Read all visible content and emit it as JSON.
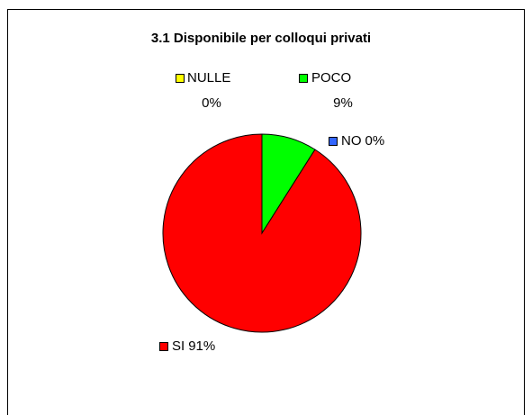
{
  "chart_data": {
    "type": "pie",
    "title": "3.1  Disponibile per colloqui privati",
    "categories": [
      "NULLE",
      "POCO",
      "NO",
      "SI"
    ],
    "values": [
      0,
      9,
      0,
      91
    ],
    "value_labels": [
      "0%",
      "9%",
      "0%",
      "91%"
    ],
    "colors": [
      "#ffff00",
      "#00ff00",
      "#3366ff",
      "#ff0000"
    ]
  }
}
